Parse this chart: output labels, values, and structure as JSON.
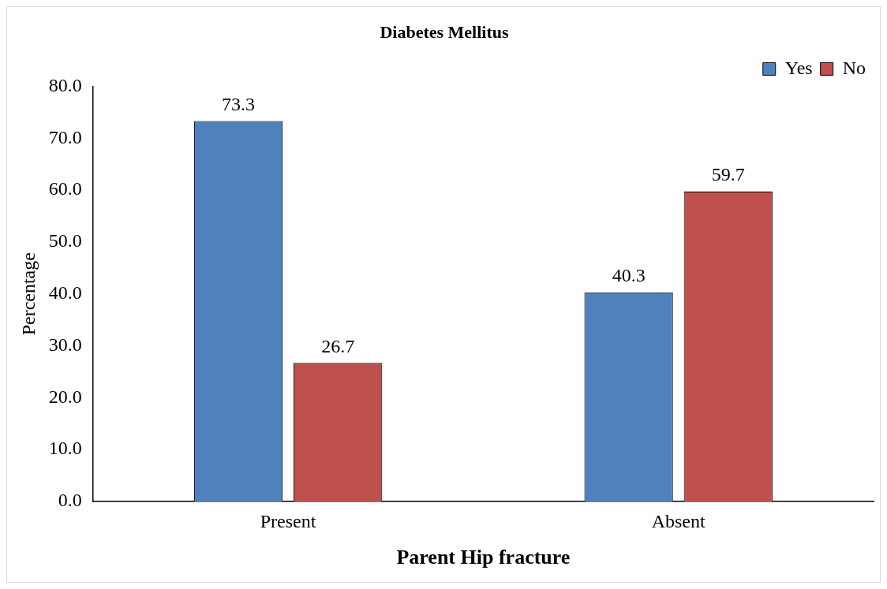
{
  "chart_data": {
    "type": "bar",
    "title": "Diabetes Mellitus",
    "xlabel": "Parent Hip fracture",
    "ylabel": "Percentage",
    "categories": [
      "Present",
      "Absent"
    ],
    "series": [
      {
        "name": "Yes",
        "color": "#4f81bd",
        "values": [
          73.3,
          40.3
        ]
      },
      {
        "name": "No",
        "color": "#c0504d",
        "values": [
          26.7,
          59.7
        ]
      }
    ],
    "ylim": [
      0,
      80
    ],
    "yticks": [
      {
        "value": 0,
        "label": "0.0"
      },
      {
        "value": 10,
        "label": "10.0"
      },
      {
        "value": 20,
        "label": "20.0"
      },
      {
        "value": 30,
        "label": "30.0"
      },
      {
        "value": 40,
        "label": "40.0"
      },
      {
        "value": 50,
        "label": "50.0"
      },
      {
        "value": 60,
        "label": "60.0"
      },
      {
        "value": 70,
        "label": "70.0"
      },
      {
        "value": 80,
        "label": "80.0"
      }
    ],
    "grid": false,
    "legend": "top right",
    "data_labels": true
  }
}
